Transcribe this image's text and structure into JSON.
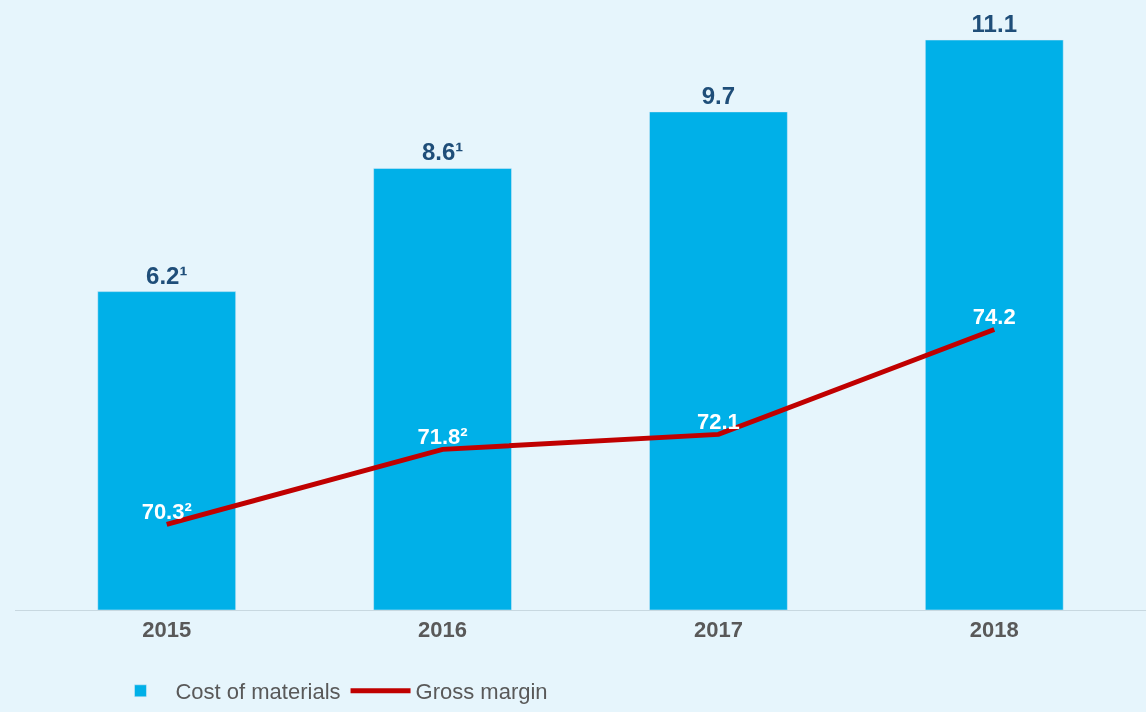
{
  "chart_data": {
    "type": "bar",
    "categories": [
      "2015",
      "2016",
      "2017",
      "2018"
    ],
    "series": [
      {
        "name": "Cost of materials",
        "color": "#00b0e8",
        "values": [
          6.2,
          8.6,
          9.7,
          11.1
        ],
        "value_labels": [
          "6.2¹",
          "8.6¹",
          "9.7",
          "11.1"
        ]
      },
      {
        "name": "Gross margin",
        "type": "line",
        "axis": "y2",
        "color": "#c00000",
        "values": [
          70.3,
          71.8,
          72.1,
          74.2
        ],
        "value_labels": [
          "70.3²",
          "71.8²",
          "72.1",
          "74.2"
        ]
      }
    ],
    "tick_labels": "x",
    "grid": false,
    "legend": "bottom left",
    "marker": "none",
    "line_style": "solid"
  }
}
